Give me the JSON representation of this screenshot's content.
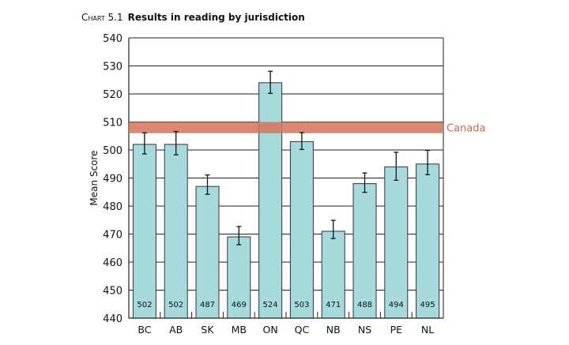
{
  "chart_data": {
    "type": "bar",
    "title_label": "Chart 5.1",
    "title": "Results in reading by jurisdiction",
    "xlabel": "",
    "ylabel": "Mean Score",
    "ylim": [
      440,
      540
    ],
    "yticks": [
      440,
      450,
      460,
      470,
      480,
      490,
      500,
      510,
      520,
      530,
      540
    ],
    "grid": true,
    "categories": [
      "BC",
      "AB",
      "SK",
      "MB",
      "ON",
      "QC",
      "NB",
      "NS",
      "PE",
      "NL"
    ],
    "values": [
      502,
      502,
      487,
      469,
      524,
      503,
      471,
      488,
      494,
      495
    ],
    "error_low": [
      498.6,
      498.3,
      484.2,
      466.2,
      520.2,
      500.2,
      468.4,
      484.9,
      489.2,
      491.2
    ],
    "error_high": [
      506.1,
      506.6,
      491.1,
      472.7,
      528.1,
      506.2,
      474.9,
      491.8,
      499.2,
      499.9
    ],
    "reference_band": {
      "label": "Canada",
      "low": 506,
      "high": 510
    },
    "colors": {
      "bar": "#a6dadc",
      "band": "#d3735a",
      "band_label": "#c8684e",
      "grid": "#222222"
    }
  }
}
